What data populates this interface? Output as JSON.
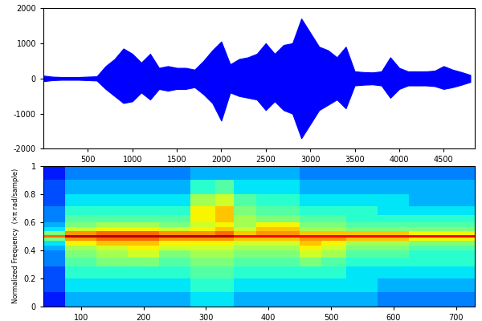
{
  "chart_data": [
    {
      "type": "area",
      "color": "#0000ff",
      "x": [
        0,
        100,
        200,
        300,
        400,
        500,
        600,
        700,
        800,
        900,
        1000,
        1100,
        1200,
        1300,
        1400,
        1500,
        1600,
        1700,
        1800,
        1900,
        2000,
        2100,
        2200,
        2300,
        2400,
        2500,
        2600,
        2700,
        2800,
        2900,
        3000,
        3100,
        3200,
        3300,
        3400,
        3500,
        3600,
        3700,
        3800,
        3900,
        4000,
        4100,
        4200,
        4300,
        4400,
        4500,
        4600,
        4700,
        4800
      ],
      "upper": [
        80,
        50,
        40,
        40,
        40,
        50,
        60,
        350,
        550,
        850,
        700,
        450,
        700,
        300,
        350,
        300,
        300,
        250,
        500,
        800,
        1050,
        400,
        550,
        600,
        700,
        1000,
        700,
        950,
        1000,
        1700,
        1300,
        900,
        800,
        600,
        900,
        200,
        180,
        170,
        200,
        600,
        300,
        200,
        200,
        200,
        220,
        350,
        250,
        180,
        100
      ],
      "lower": [
        -80,
        -50,
        -40,
        -40,
        -40,
        -50,
        -60,
        -300,
        -500,
        -700,
        -650,
        -400,
        -600,
        -300,
        -350,
        -300,
        -300,
        -250,
        -450,
        -700,
        -1200,
        -400,
        -500,
        -550,
        -600,
        -900,
        -650,
        -900,
        -1000,
        -1700,
        -1300,
        -900,
        -750,
        -600,
        -850,
        -200,
        -180,
        -170,
        -200,
        -550,
        -300,
        -200,
        -200,
        -200,
        -220,
        -300,
        -250,
        -180,
        -100
      ],
      "xlim": [
        0,
        4850
      ],
      "xticks": [
        500,
        1000,
        1500,
        2000,
        2500,
        3000,
        3500,
        4000,
        4500
      ],
      "ylim": [
        -2000,
        2000
      ],
      "yticks": [
        -2000,
        -1000,
        0,
        1000,
        2000
      ]
    },
    {
      "type": "heatmap",
      "ylabel": "Normalized Frequency  (×π rad/sample)",
      "x": [
        50,
        100,
        150,
        200,
        250,
        300,
        330,
        360,
        400,
        430,
        470,
        500,
        550,
        600,
        650,
        700,
        725
      ],
      "y": [
        0.05,
        0.15,
        0.25,
        0.32,
        0.38,
        0.42,
        0.45,
        0.48,
        0.5,
        0.52,
        0.55,
        0.58,
        0.62,
        0.68,
        0.75,
        0.85,
        0.95
      ],
      "cells": [
        [
          1.5,
          3,
          3,
          3,
          3,
          3.5,
          3.5,
          3,
          3,
          3,
          3,
          3,
          3,
          2.5,
          2.5,
          2.5,
          2.5
        ],
        [
          2,
          3.5,
          3.5,
          3.5,
          3.5,
          4,
          4,
          3.5,
          3.5,
          3.5,
          3.5,
          3.5,
          3.5,
          3,
          3,
          3,
          3
        ],
        [
          2,
          4,
          4,
          4,
          4,
          4.5,
          4.5,
          4,
          4,
          4,
          4,
          4,
          3.5,
          3.5,
          3.5,
          3.5,
          3.5
        ],
        [
          2.5,
          4.5,
          5,
          5,
          4.5,
          5,
          5,
          4.5,
          4.5,
          4.5,
          5,
          4.5,
          4,
          4,
          4,
          4,
          4
        ],
        [
          2.5,
          5,
          5.5,
          6,
          5,
          5.5,
          5.5,
          5,
          5,
          5,
          6,
          5.5,
          4.5,
          4.5,
          4,
          4,
          4
        ],
        [
          3,
          5.5,
          6,
          6.5,
          6,
          6,
          6,
          5.5,
          5.5,
          5.5,
          6.5,
          6,
          5,
          5,
          4.5,
          4.5,
          4.5
        ],
        [
          3.5,
          6.5,
          7,
          7,
          6.5,
          6.5,
          6.5,
          6,
          6,
          6,
          7,
          6.5,
          5.5,
          5.5,
          5,
          5,
          5
        ],
        [
          5,
          7.5,
          8,
          8,
          7.5,
          7.5,
          7.5,
          7,
          7,
          7,
          7.5,
          7.5,
          7,
          7,
          6.5,
          6.5,
          6.5
        ],
        [
          8,
          9.5,
          9.5,
          9.5,
          9.5,
          9.5,
          9.5,
          9,
          9,
          9,
          9,
          9,
          9,
          9,
          9,
          9,
          9
        ],
        [
          5,
          7.5,
          8,
          8,
          7.5,
          7.5,
          8,
          7,
          7.5,
          7.5,
          7,
          7,
          7,
          7,
          6.5,
          6.5,
          6.5
        ],
        [
          3.5,
          6,
          6.5,
          6.5,
          6,
          6.5,
          7,
          6,
          7,
          7,
          5.5,
          5.5,
          5,
          5,
          5,
          5,
          5
        ],
        [
          3,
          5,
          5.5,
          5.5,
          5,
          6,
          6.5,
          5.5,
          6.5,
          6.5,
          5,
          5,
          4.5,
          4.5,
          4.5,
          4.5,
          4.5
        ],
        [
          2.5,
          4.5,
          4.5,
          4.5,
          4.5,
          6.5,
          7,
          5.5,
          5,
          5,
          4.5,
          4.5,
          4,
          4,
          4,
          4,
          4
        ],
        [
          2.5,
          4,
          4,
          4,
          4,
          6.5,
          7,
          5,
          4.5,
          4.5,
          4,
          4,
          4,
          3.5,
          3.5,
          3.5,
          3.5
        ],
        [
          2,
          3.5,
          3.5,
          3.5,
          3.5,
          5.5,
          6,
          4.5,
          4,
          4,
          3.5,
          3.5,
          3.5,
          3.5,
          3,
          3,
          3
        ],
        [
          2,
          3,
          3,
          3,
          3,
          4,
          4.5,
          3.5,
          3.5,
          3.5,
          3,
          3,
          3,
          3,
          3,
          3,
          3
        ],
        [
          1.5,
          2.5,
          2.5,
          2.5,
          2.5,
          3,
          3,
          3,
          3,
          3,
          2.5,
          2.5,
          2.5,
          2.5,
          2.5,
          2.5,
          2.5
        ]
      ],
      "color_range": [
        0,
        10
      ],
      "xlim": [
        40,
        730
      ],
      "xticks": [
        100,
        200,
        300,
        400,
        500,
        600,
        700
      ],
      "ylim": [
        0,
        1
      ],
      "yticks": [
        0,
        0.2,
        0.4,
        0.6,
        0.8,
        1
      ]
    }
  ]
}
